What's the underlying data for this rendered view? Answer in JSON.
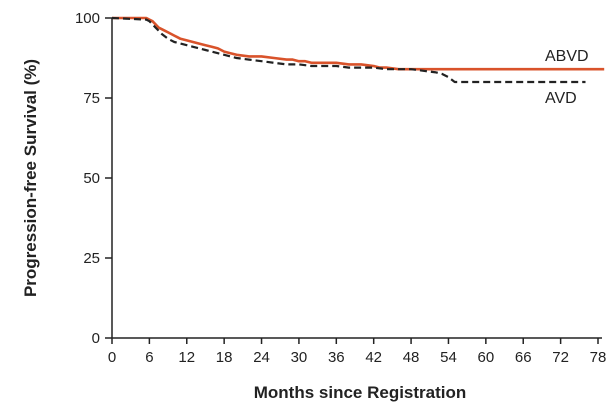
{
  "chart_data": {
    "type": "line",
    "title": "",
    "xlabel": "Months since Registration",
    "ylabel": "Progression-free Survival (%)",
    "xlim": [
      0,
      78
    ],
    "ylim": [
      0,
      100
    ],
    "x_ticks": [
      "0",
      "6",
      "12",
      "18",
      "24",
      "30",
      "36",
      "42",
      "48",
      "54",
      "60",
      "66",
      "72",
      "78"
    ],
    "y_ticks": [
      "0",
      "25",
      "50",
      "75",
      "100"
    ],
    "grid": false,
    "series": [
      {
        "name": "ABVD",
        "color": "#d9532b",
        "style": "solid",
        "x": [
          0,
          5.5,
          6,
          6.5,
          7,
          7.5,
          8,
          8.5,
          9,
          9.5,
          10,
          10.5,
          11,
          12,
          13,
          14,
          15,
          16,
          17,
          18,
          19,
          20,
          22,
          24,
          26,
          28,
          29,
          30,
          31,
          32,
          34,
          36,
          38,
          40,
          42,
          43,
          44,
          46,
          48,
          52,
          56,
          60,
          64,
          72,
          79
        ],
        "y": [
          100,
          100,
          99.5,
          99,
          98,
          97,
          96.5,
          96,
          95.5,
          95,
          94.5,
          94,
          93.5,
          93,
          92.5,
          92,
          91.5,
          91,
          90.5,
          89.5,
          89,
          88.5,
          88,
          88,
          87.5,
          87,
          87,
          86.5,
          86.5,
          86,
          86,
          86,
          85.5,
          85.5,
          85,
          84.5,
          84.5,
          84,
          84,
          84,
          84,
          84,
          84,
          84,
          84
        ]
      },
      {
        "name": "AVD",
        "color": "#222222",
        "style": "dashed",
        "x": [
          0,
          5.5,
          6,
          6.5,
          7,
          7.5,
          8,
          9,
          10,
          11,
          12,
          13,
          14,
          15,
          16,
          17,
          18,
          19,
          20,
          22,
          24,
          26,
          28,
          30,
          32,
          34,
          36,
          38,
          40,
          42,
          44,
          46,
          48,
          50,
          52,
          53,
          54,
          55,
          56,
          60,
          66,
          72,
          76
        ],
        "y": [
          100,
          99.5,
          99,
          98,
          97,
          96,
          95,
          93.5,
          92.5,
          92,
          91.5,
          91,
          90.5,
          90,
          89.5,
          89,
          88.5,
          88,
          87.5,
          87,
          86.5,
          86,
          85.5,
          85.5,
          85,
          85,
          85,
          84.5,
          84.5,
          84.5,
          84,
          84,
          84,
          83.5,
          83,
          82.5,
          81.5,
          80,
          80,
          80,
          80,
          80,
          80
        ]
      }
    ],
    "legend": "inline-right"
  }
}
